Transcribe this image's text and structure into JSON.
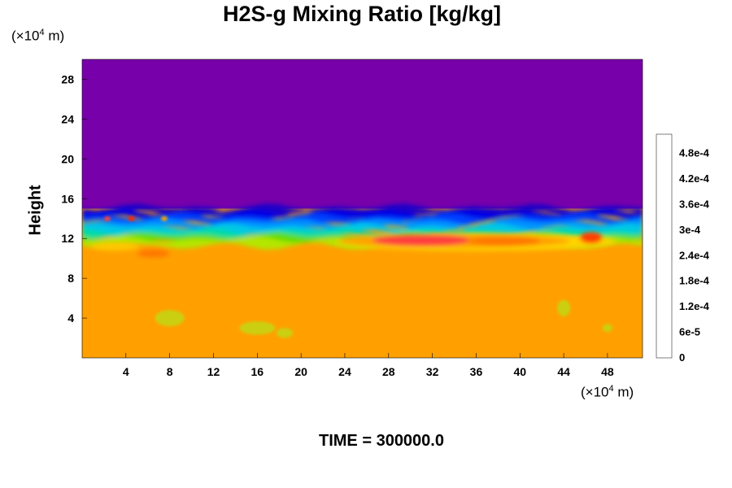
{
  "chart_data": {
    "type": "heatmap",
    "title": "H2S-g Mixing Ratio [kg/kg]",
    "ylabel": "Height",
    "xlabel": "",
    "x_unit": {
      "prefix": "(×10",
      "exp": "4",
      "suffix": " m)"
    },
    "y_unit": {
      "prefix": "(×10",
      "exp": "4",
      "suffix": " m)"
    },
    "xlim": [
      0,
      51.2
    ],
    "ylim": [
      0,
      30
    ],
    "x_ticks": [
      "4",
      "8",
      "12",
      "16",
      "20",
      "24",
      "28",
      "32",
      "36",
      "40",
      "44",
      "48"
    ],
    "y_ticks": [
      "4",
      "8",
      "12",
      "16",
      "20",
      "24",
      "28"
    ],
    "colorbar": {
      "min": 0,
      "max": 0.00051,
      "tick_labels": [
        "0",
        "6e-5",
        "1.2e-4",
        "1.8e-4",
        "2.4e-4",
        "3e-4",
        "3.6e-4",
        "4.2e-4",
        "4.8e-4"
      ],
      "colors": [
        "#7800aa",
        "#3000c8",
        "#0000dc",
        "#0030ff",
        "#0078ff",
        "#00b4ff",
        "#00dcdc",
        "#00e6a0",
        "#00dc50",
        "#32dc00",
        "#8cdc00",
        "#c8e600",
        "#e6e600",
        "#ffd200",
        "#ffa000",
        "#ff7800",
        "#ff5000",
        "#ff2800",
        "#ff3c3c",
        "#ff7878",
        "#ffb4b4"
      ]
    },
    "regions": {
      "upper_value": 0.0,
      "transition_height": 15,
      "lower_value": 0.00035,
      "enhanced_layer": {
        "x_range": [
          24,
          48
        ],
        "height": 11.5,
        "max_value": 0.00045
      }
    }
  },
  "time_label": "TIME = 300000.0"
}
